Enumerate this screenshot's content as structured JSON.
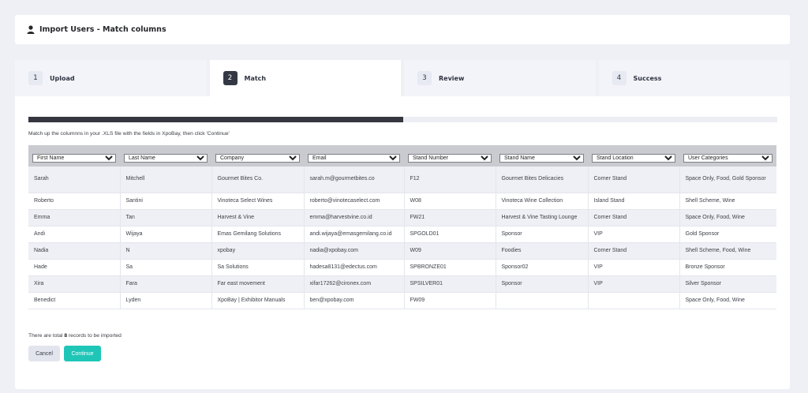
{
  "header": {
    "title": "Import Users - Match columns",
    "icon": "user-icon"
  },
  "steps": [
    {
      "num": "1",
      "label": "Upload",
      "active": false
    },
    {
      "num": "2",
      "label": "Match",
      "active": true
    },
    {
      "num": "3",
      "label": "Review",
      "active": false
    },
    {
      "num": "4",
      "label": "Success",
      "active": false
    }
  ],
  "progress": {
    "fraction": 0.5
  },
  "instructions": "Match up the columnns in your .XLS file with the fields in XpoBay, then click 'Continue'",
  "columns": [
    "First Name",
    "Last Name",
    "Company",
    "Email",
    "Stand Number",
    "Stand Name",
    "Stand Location",
    "User Categories"
  ],
  "rows": [
    [
      "Sarah",
      "Mitchell",
      "Gourmet Bites Co.",
      "sarah.m@gourmetbites.co",
      "F12",
      "Gourmet Bites Delicacies",
      "Corner Stand",
      "Space Only, Food, Gold Sponsor"
    ],
    [
      "Roberto",
      "Santini",
      "Vinoteca Select Wines",
      "roberto@vinotecaselect.com",
      "W08",
      "Vinoteca Wine Collection",
      "Island Stand",
      "Shell Scheme, Wine"
    ],
    [
      "Emma",
      "Tan",
      "Harvest & Vine",
      "emma@harvestvine.co.id",
      "FW21",
      "Harvest & Vine Tasting Lounge",
      "Corner Stand",
      "Space Only, Food, Wine"
    ],
    [
      "Andi",
      "Wijaya",
      "Emas Gemilang Solutions",
      "andi.wijaya@emasgemilang.co.id",
      "SPGOLD01",
      "Sponsor",
      "VIP",
      "Gold Sponsor"
    ],
    [
      "Nadia",
      "N",
      "xpobay",
      "nadia@xpobay.com",
      "W09",
      "Foodies",
      "Corner Stand",
      "Shell Scheme, Food, Wine"
    ],
    [
      "Hade",
      "Sa",
      "Sa Solutions",
      "hadesa8131@edectus.com",
      "SPBRONZE01",
      "Sponsor02",
      "VIP",
      "Bronze Sponsor"
    ],
    [
      "Xira",
      "Fara",
      "Far east movement",
      "xifar17262@cironex.com",
      "SPSILVER01",
      "Sponsor",
      "VIP",
      "Silver Sponsor"
    ],
    [
      "Benedict",
      "Lyden",
      "XpoBay | Exhibitor Manuals",
      "ben@xpobay.com",
      "FW09",
      "",
      "",
      "Space Only, Food, Wine"
    ]
  ],
  "summary": {
    "prefix": "There are total ",
    "count": "8",
    "suffix": " records to be imported"
  },
  "buttons": {
    "cancel": "Cancel",
    "continue": "Continue"
  },
  "colors": {
    "accent": "#1fc6b8",
    "progress": "#34373f",
    "header_row": "#c9cbd0"
  }
}
